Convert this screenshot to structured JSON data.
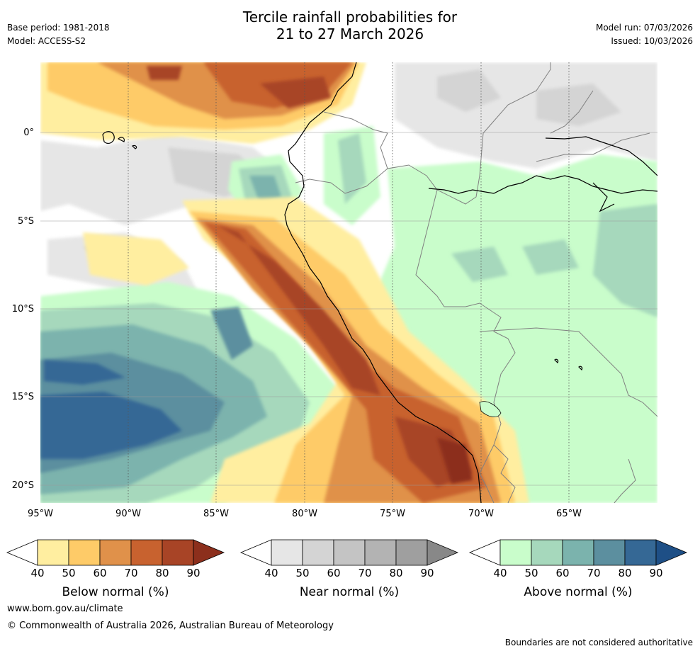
{
  "header": {
    "title_line1": "Tercile rainfall probabilities for",
    "title_line2": "21 to 27 March 2026",
    "base_period": "Base period: 1981-2018",
    "model": "Model: ACCESS-S2",
    "model_run": "Model run: 07/03/2026",
    "issued": "Issued: 10/03/2026"
  },
  "map": {
    "lat_ticks": [
      "0°",
      "5°S",
      "10°S",
      "15°S",
      "20°S"
    ],
    "lon_ticks": [
      "95°W",
      "90°W",
      "85°W",
      "80°W",
      "75°W",
      "70°W",
      "65°W"
    ],
    "colors": {
      "below": [
        "#ffeea0",
        "#fecb68",
        "#e0914a",
        "#c8622f",
        "#a84426",
        "#8c2f1c"
      ],
      "near": [
        "#e6e6e6",
        "#d4d4d4",
        "#c4c4c4",
        "#b3b3b3",
        "#9f9f9f",
        "#888888"
      ],
      "above": [
        "#c9fdcb",
        "#a6d8bc",
        "#7bb3ad",
        "#5c8f9f",
        "#356895",
        "#1e4f86"
      ]
    }
  },
  "colorbars": [
    {
      "label": "Below normal (%)",
      "ticks": [
        "40",
        "50",
        "60",
        "70",
        "80",
        "90"
      ]
    },
    {
      "label": "Near normal (%)",
      "ticks": [
        "40",
        "50",
        "60",
        "70",
        "80",
        "90"
      ]
    },
    {
      "label": "Above normal (%)",
      "ticks": [
        "40",
        "50",
        "60",
        "70",
        "80",
        "90"
      ]
    }
  ],
  "footer": {
    "website": "www.bom.gov.au/climate",
    "copyright": "© Commonwealth of Australia 2026, Australian Bureau of Meteorology",
    "disclaimer": "Boundaries are not considered authoritative"
  }
}
